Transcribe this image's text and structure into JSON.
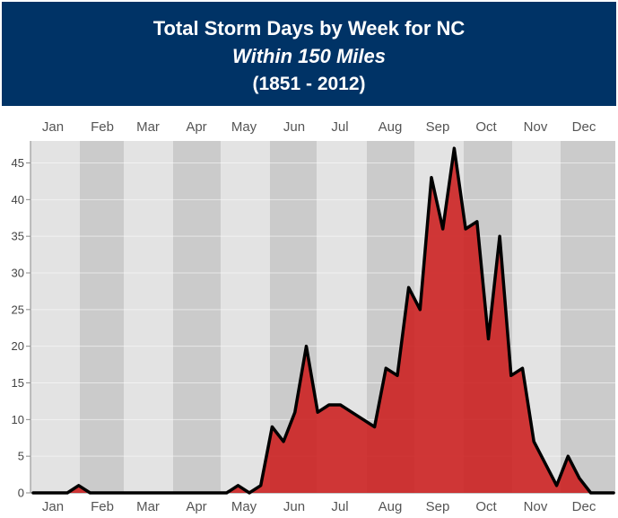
{
  "header": {
    "title": "Total Storm Days by Week for NC",
    "subtitle": "Within 150 Miles",
    "years": "(1851 - 2012)"
  },
  "chart_data": {
    "type": "area",
    "title": "Total Storm Days by Week for NC",
    "subtitle": "Within 150 Miles",
    "period": "(1851 - 2012)",
    "xlabel": "",
    "ylabel": "",
    "months": [
      "Jan",
      "Feb",
      "Mar",
      "Apr",
      "May",
      "Jun",
      "Jul",
      "Aug",
      "Sep",
      "Oct",
      "Nov",
      "Dec"
    ],
    "x_unit": "week of year",
    "x": [
      1,
      2,
      3,
      4,
      5,
      6,
      7,
      8,
      9,
      10,
      11,
      12,
      13,
      14,
      15,
      16,
      17,
      18,
      19,
      20,
      21,
      22,
      23,
      24,
      25,
      26,
      27,
      28,
      29,
      30,
      31,
      32,
      33,
      34,
      35,
      36,
      37,
      38,
      39,
      40,
      41,
      42,
      43,
      44,
      45,
      46,
      47,
      48,
      49,
      50,
      51,
      52
    ],
    "series": [
      {
        "values": [
          0,
          0,
          0,
          0,
          1,
          0,
          0,
          0,
          0,
          0,
          0,
          0,
          0,
          0,
          0,
          0,
          0,
          0,
          1,
          0,
          1,
          9,
          7,
          11,
          20,
          11,
          12,
          12,
          11,
          10,
          9,
          17,
          16,
          28,
          25,
          43,
          36,
          47,
          36,
          37,
          21,
          35,
          16,
          17,
          7,
          4,
          1,
          5,
          2,
          0,
          0,
          0
        ]
      }
    ],
    "ylim": [
      0,
      48
    ],
    "yticks": [
      0,
      5,
      10,
      15,
      20,
      25,
      30,
      35,
      40,
      45
    ],
    "grid": true,
    "month_bands": "alternating light/dark gray",
    "colors": {
      "fill": "#cc2222",
      "line": "#000000",
      "band_light": "#e3e3e3",
      "band_dark": "#cbcbcb",
      "header_bg": "#003366"
    }
  }
}
